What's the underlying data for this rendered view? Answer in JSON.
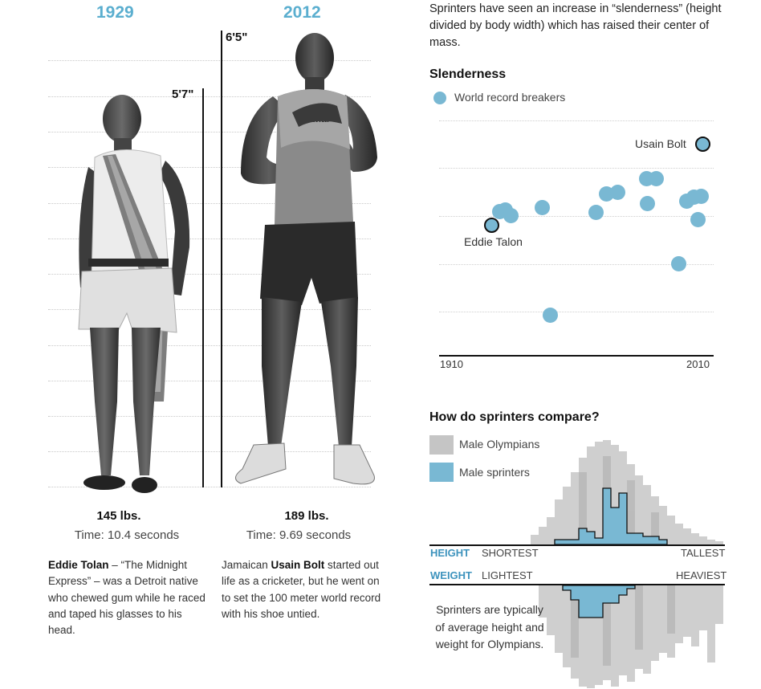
{
  "left": {
    "year_1929": "1929",
    "year_2012": "2012",
    "height_tolan": "5'7\"",
    "height_bolt": "6'5\"",
    "tolan": {
      "weight": "145 lbs.",
      "time": "Time: 10.4 seconds",
      "bio_name": "Eddie Tolan",
      "bio_rest": " – “The Midnight Express” – was a Detroit native who chewed gum while he raced and taped his glasses to his head."
    },
    "bolt": {
      "weight": "189 lbs.",
      "time": "Time: 9.69 seconds",
      "bio_pre": "Jamaican ",
      "bio_name": "Usain Bolt",
      "bio_rest": " started out life as a cricketer, but he went on to set the 100 meter world record with his shoe untied."
    }
  },
  "right": {
    "intro": "Sprinters have seen an increase in “slenderness” (height divided by body width) which has raised their center of mass.",
    "slenderness": {
      "title": "Slenderness",
      "legend": "World record breakers",
      "label_bolt": "Usain Bolt",
      "label_talon": "Eddie Talon",
      "x_start": "1910",
      "x_end": "2010",
      "color": "#79b8d3"
    },
    "compare": {
      "title": "How do sprinters compare?",
      "legend_olympians": "Male Olympians",
      "legend_sprinters": "Male sprinters",
      "height_label": "HEIGHT",
      "height_low": "SHORTEST",
      "height_high": "TALLEST",
      "weight_label": "WEIGHT",
      "weight_low": "LIGHTEST",
      "weight_high": "HEAVIEST",
      "note": "Sprinters are typically of average height and weight for Olympians."
    }
  }
}
